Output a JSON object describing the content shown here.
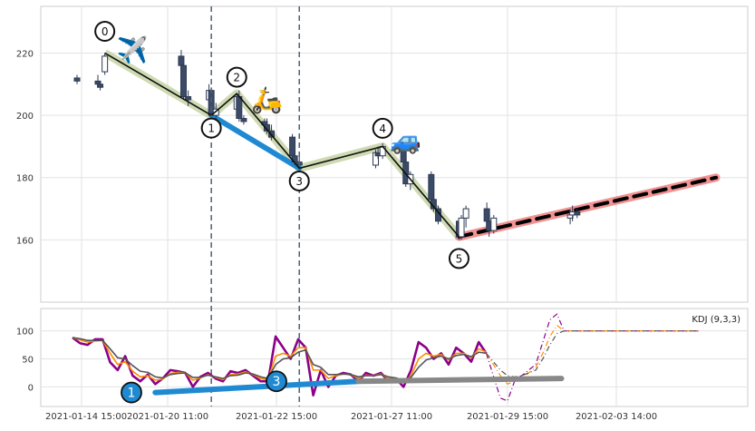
{
  "chart_data": [
    {
      "type": "candlestick",
      "panel": "price",
      "title": "",
      "xlabel": "",
      "ylabel": "",
      "ylim": [
        140,
        235
      ],
      "yticks": [
        160,
        180,
        200,
        220
      ],
      "grid": true,
      "candles": [
        {
          "x": "2021-01-14 15:00",
          "o": 212,
          "h": 213,
          "l": 210,
          "c": 211
        },
        {
          "x": "2021-01-15 09:00",
          "o": 211,
          "h": 213,
          "l": 209,
          "c": 210
        },
        {
          "x": "2021-01-15 11:00",
          "o": 210,
          "h": 211,
          "l": 208,
          "c": 209
        },
        {
          "x": "2021-01-15 15:00",
          "o": 214,
          "h": 220,
          "l": 213,
          "c": 219
        },
        {
          "x": "2021-01-18 09:00",
          "o": 219,
          "h": 221,
          "l": 215,
          "c": 216
        },
        {
          "x": "2021-01-18 11:00",
          "o": 216,
          "h": 217,
          "l": 205,
          "c": 206
        },
        {
          "x": "2021-01-18 15:00",
          "o": 206,
          "h": 208,
          "l": 203,
          "c": 205
        },
        {
          "x": "2021-01-19 09:00",
          "o": 205,
          "h": 210,
          "l": 203,
          "c": 208
        },
        {
          "x": "2021-01-19 11:00",
          "o": 208,
          "h": 209,
          "l": 199,
          "c": 200
        },
        {
          "x": "2021-01-19 15:00",
          "o": 200,
          "h": 204,
          "l": 197,
          "c": 202
        },
        {
          "x": "2021-01-20 09:00",
          "o": 202,
          "h": 207,
          "l": 201,
          "c": 206
        },
        {
          "x": "2021-01-20 11:00",
          "o": 206,
          "h": 208,
          "l": 198,
          "c": 199
        },
        {
          "x": "2021-01-20 15:00",
          "o": 199,
          "h": 200,
          "l": 197,
          "c": 198
        },
        {
          "x": "2021-01-21 09:00",
          "o": 198,
          "h": 199,
          "l": 196,
          "c": 197
        },
        {
          "x": "2021-01-21 11:00",
          "o": 197,
          "h": 199,
          "l": 194,
          "c": 195
        },
        {
          "x": "2021-01-21 15:00",
          "o": 195,
          "h": 197,
          "l": 192,
          "c": 193
        },
        {
          "x": "2021-01-22 09:00",
          "o": 193,
          "h": 194,
          "l": 186,
          "c": 187
        },
        {
          "x": "2021-01-22 11:00",
          "o": 187,
          "h": 188,
          "l": 184,
          "c": 185
        },
        {
          "x": "2021-01-22 15:00",
          "o": 185,
          "h": 187,
          "l": 183,
          "c": 184
        },
        {
          "x": "2021-01-25 09:00",
          "o": 184,
          "h": 189,
          "l": 183,
          "c": 188
        },
        {
          "x": "2021-01-25 11:00",
          "o": 188,
          "h": 190,
          "l": 186,
          "c": 187
        },
        {
          "x": "2021-01-25 15:00",
          "o": 187,
          "h": 191,
          "l": 186,
          "c": 190
        },
        {
          "x": "2021-01-26 09:00",
          "o": 190,
          "h": 191,
          "l": 184,
          "c": 185
        },
        {
          "x": "2021-01-26 11:00",
          "o": 185,
          "h": 186,
          "l": 177,
          "c": 178
        },
        {
          "x": "2021-01-26 15:00",
          "o": 178,
          "h": 182,
          "l": 176,
          "c": 181
        },
        {
          "x": "2021-01-27 09:00",
          "o": 181,
          "h": 182,
          "l": 172,
          "c": 173
        },
        {
          "x": "2021-01-27 11:00",
          "o": 173,
          "h": 175,
          "l": 169,
          "c": 170
        },
        {
          "x": "2021-01-27 15:00",
          "o": 170,
          "h": 171,
          "l": 165,
          "c": 166
        },
        {
          "x": "2021-01-28 09:00",
          "o": 166,
          "h": 167,
          "l": 160,
          "c": 161
        },
        {
          "x": "2021-01-28 11:00",
          "o": 161,
          "h": 168,
          "l": 160,
          "c": 167
        },
        {
          "x": "2021-01-28 15:00",
          "o": 167,
          "h": 171,
          "l": 164,
          "c": 170
        },
        {
          "x": "2021-01-29 09:00",
          "o": 170,
          "h": 172,
          "l": 165,
          "c": 166
        },
        {
          "x": "2021-01-29 11:00",
          "o": 166,
          "h": 168,
          "l": 161,
          "c": 163
        },
        {
          "x": "2021-01-29 15:00",
          "o": 163,
          "h": 168,
          "l": 162,
          "c": 167
        },
        {
          "x": "2021-02-01 09:00",
          "o": 167,
          "h": 170,
          "l": 165,
          "c": 168
        },
        {
          "x": "2021-02-01 11:00",
          "o": 168,
          "h": 171,
          "l": 166,
          "c": 169
        },
        {
          "x": "2021-02-01 15:00",
          "o": 169,
          "h": 170,
          "l": 167,
          "c": 168
        }
      ],
      "swing_points": [
        {
          "label": "0",
          "x": "2021-01-15 15:00",
          "y": 220
        },
        {
          "label": "1",
          "x": "2021-01-19 11:00",
          "y": 200
        },
        {
          "label": "2",
          "x": "2021-01-20 09:00",
          "y": 207
        },
        {
          "label": "3",
          "x": "2021-01-22 15:00",
          "y": 183
        },
        {
          "label": "4",
          "x": "2021-01-25 15:00",
          "y": 190
        },
        {
          "label": "5",
          "x": "2021-01-28 09:00",
          "y": 161
        }
      ],
      "trend_lines": [
        {
          "name": "",
          "color": "#1f8ad1",
          "from": {
            "x": "2021-01-19 11:00",
            "y": 200
          },
          "to": {
            "x": "2021-01-22 15:00",
            "y": 183
          }
        },
        {
          "name": "",
          "color": "#f08080",
          "from": {
            "x": "2021-01-28 09:00",
            "y": 161
          },
          "to": {
            "x": "2021-02-06 15:00",
            "y": 180
          }
        },
        {
          "name": "",
          "color": "#000000",
          "style": "dashed",
          "from": {
            "x": "2021-01-28 09:00",
            "y": 161
          },
          "to": {
            "x": "2021-02-06 15:00",
            "y": 180
          }
        }
      ],
      "vertical_markers": [
        "2021-01-19 11:00",
        "2021-01-22 15:00"
      ],
      "emoji_annotations": [
        {
          "glyph": "✈️",
          "x": "2021-01-16 15:00",
          "y": 220
        },
        {
          "glyph": "🛵",
          "x": "2021-01-21 11:00",
          "y": 204
        },
        {
          "glyph": "🚙",
          "x": "2021-01-26 11:00",
          "y": 191
        }
      ]
    },
    {
      "type": "line",
      "panel": "indicator",
      "title": "",
      "legend_text": "KDJ (9,3,3)",
      "ylim": [
        -35,
        140
      ],
      "yticks": [
        0,
        50,
        100
      ],
      "x_tick_labels": [
        "2021-01-14 15:00",
        "2021-01-20 11:00",
        "2021-01-22 15:00",
        "2021-01-27 11:00",
        "2021-01-29 15:00",
        "2021-02-03 14:00"
      ],
      "series": [
        {
          "name": "",
          "color": "#8b008b",
          "values": [
            88,
            78,
            75,
            85,
            85,
            44,
            30,
            55,
            20,
            10,
            22,
            5,
            15,
            30,
            28,
            25,
            0,
            18,
            25,
            15,
            10,
            28,
            25,
            30,
            20,
            10,
            10,
            90,
            70,
            50,
            85,
            70,
            -15,
            30,
            0,
            20,
            25,
            22,
            10,
            25,
            20,
            25,
            10,
            15,
            0,
            30,
            80,
            70,
            50,
            60,
            40,
            70,
            60,
            45,
            80,
            60
          ]
        },
        {
          "name": "",
          "color": "#ff8c00",
          "values": [
            88,
            84,
            80,
            82,
            83,
            60,
            40,
            45,
            28,
            18,
            20,
            12,
            14,
            24,
            26,
            25,
            12,
            16,
            22,
            17,
            13,
            22,
            23,
            27,
            22,
            15,
            13,
            55,
            60,
            55,
            70,
            70,
            30,
            30,
            15,
            20,
            23,
            22,
            15,
            21,
            20,
            23,
            15,
            15,
            8,
            20,
            50,
            60,
            55,
            58,
            48,
            60,
            60,
            52,
            68,
            62
          ]
        },
        {
          "name": "",
          "color": "#555555",
          "values": [
            88,
            86,
            83,
            83,
            83,
            68,
            52,
            50,
            38,
            28,
            26,
            18,
            16,
            22,
            24,
            25,
            17,
            17,
            21,
            18,
            15,
            20,
            21,
            25,
            23,
            18,
            15,
            40,
            50,
            52,
            62,
            66,
            40,
            35,
            22,
            22,
            23,
            22,
            18,
            20,
            20,
            22,
            18,
            16,
            12,
            17,
            35,
            48,
            52,
            55,
            50,
            56,
            58,
            54,
            62,
            60
          ]
        }
      ],
      "forecast_series": [
        {
          "color": "#8b008b",
          "style": "dashdot",
          "values": [
            60,
            20,
            -20,
            -25,
            10,
            20,
            30,
            40,
            80,
            120,
            130,
            100,
            100,
            100,
            100,
            100,
            100,
            100,
            100,
            100,
            100,
            100,
            100,
            100,
            100,
            100,
            100,
            100,
            100,
            100,
            100
          ]
        },
        {
          "color": "#ff8c00",
          "style": "dashdot",
          "values": [
            60,
            40,
            20,
            5,
            10,
            15,
            25,
            35,
            60,
            90,
            110,
            100,
            100,
            100,
            100,
            100,
            100,
            100,
            100,
            100,
            100,
            100,
            100,
            100,
            100,
            100,
            100,
            100,
            100,
            100,
            100
          ]
        },
        {
          "color": "#555555",
          "style": "dashdot",
          "values": [
            60,
            45,
            30,
            20,
            18,
            20,
            25,
            30,
            50,
            75,
            95,
            100,
            100,
            100,
            100,
            100,
            100,
            100,
            100,
            100,
            100,
            100,
            100,
            100,
            100,
            100,
            100,
            100,
            100,
            100,
            100
          ]
        }
      ],
      "markers": [
        {
          "label": "1",
          "x_index": 11,
          "y": -10
        },
        {
          "label": "3",
          "x_index": 38,
          "y": 10
        }
      ],
      "trend_lines": [
        {
          "color": "#1f8ad1",
          "from": {
            "x_index": 11,
            "y": -10
          },
          "to": {
            "x_index": 38,
            "y": 10
          }
        },
        {
          "color": "#888888",
          "from": {
            "x_index": 38,
            "y": 10
          },
          "to": {
            "x_index": 65,
            "y": 15
          }
        }
      ]
    }
  ]
}
